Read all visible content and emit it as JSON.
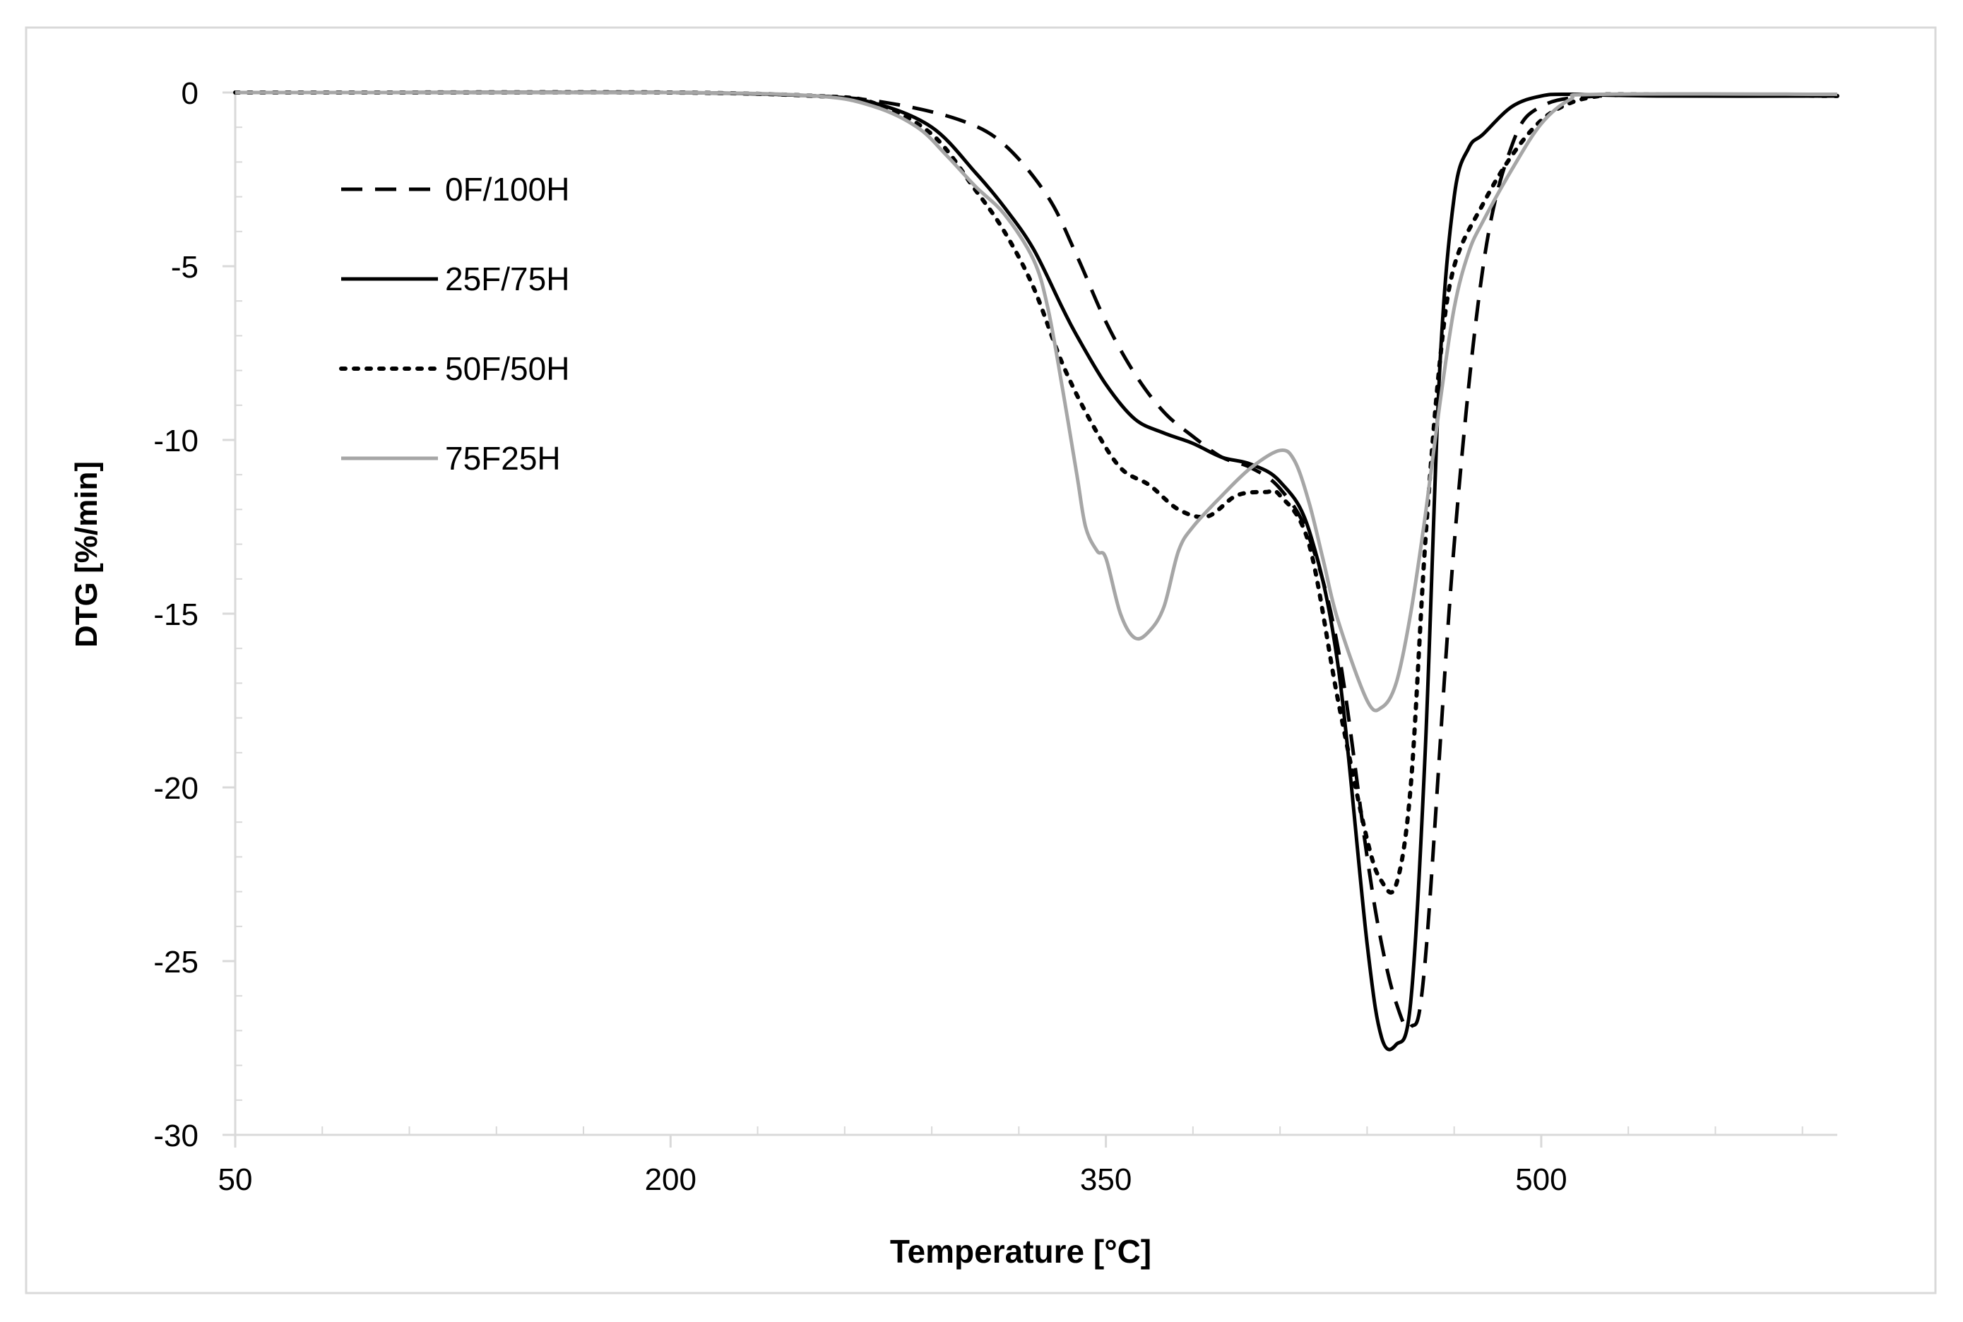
{
  "chart_data": {
    "type": "line",
    "title": "",
    "xlabel": "Temperature  [°C]",
    "ylabel": "DTG [%/min]",
    "xlim": [
      50,
      602
    ],
    "ylim": [
      -30,
      0
    ],
    "x_ticks": [
      50,
      200,
      350,
      500
    ],
    "x_tick_labels": [
      "50",
      "200",
      "350",
      "500"
    ],
    "y_ticks": [
      0,
      -5,
      -10,
      -15,
      -20,
      -25,
      -30
    ],
    "y_tick_labels": [
      "0",
      "-5",
      "-10",
      "-15",
      "-20",
      "-25",
      "-30"
    ],
    "grid": false,
    "legend_position": "top-left",
    "series": [
      {
        "name": "0F/100H",
        "color": "#000000",
        "dash": "dashed",
        "x": [
          50,
          100,
          200,
          250,
          275,
          300,
          315,
          330,
          340,
          350,
          360,
          370,
          380,
          390,
          400,
          410,
          420,
          430,
          440,
          445,
          450,
          455,
          460,
          470,
          480,
          490,
          500,
          520,
          560,
          602
        ],
        "y": [
          0,
          0,
          0,
          -0.1,
          -0.3,
          -0.8,
          -1.5,
          -3,
          -4.7,
          -6.6,
          -8.1,
          -9.2,
          -9.9,
          -10.5,
          -10.8,
          -11.4,
          -12.8,
          -16,
          -22,
          -24.5,
          -26.2,
          -26.9,
          -25,
          -13,
          -5,
          -1.5,
          -0.4,
          -0.1,
          -0.1,
          -0.1
        ]
      },
      {
        "name": "25F/75H",
        "color": "#000000",
        "dash": "solid",
        "x": [
          50,
          100,
          200,
          250,
          270,
          290,
          305,
          315,
          325,
          335,
          340,
          350,
          360,
          370,
          380,
          390,
          400,
          410,
          420,
          430,
          440,
          445,
          450,
          455,
          460,
          465,
          470,
          475,
          480,
          490,
          500,
          510,
          540,
          602
        ],
        "y": [
          0,
          0,
          0,
          -0.1,
          -0.3,
          -1,
          -2.3,
          -3.3,
          -4.5,
          -6.2,
          -7,
          -8.4,
          -9.4,
          -9.8,
          -10.1,
          -10.5,
          -10.7,
          -11.2,
          -12.6,
          -16.5,
          -24.5,
          -27.2,
          -27.4,
          -26.2,
          -19,
          -8,
          -3,
          -1.6,
          -1.2,
          -0.4,
          -0.1,
          -0.05,
          -0.1,
          -0.1
        ]
      },
      {
        "name": "50F/50H",
        "color": "#000000",
        "dash": "dotted",
        "x": [
          50,
          100,
          200,
          250,
          270,
          290,
          305,
          315,
          325,
          335,
          345,
          355,
          365,
          375,
          385,
          395,
          405,
          410,
          420,
          430,
          440,
          445,
          450,
          455,
          460,
          465,
          470,
          480,
          490,
          500,
          510,
          520,
          530,
          602
        ],
        "y": [
          0,
          0,
          0,
          -0.1,
          -0.3,
          -1.2,
          -2.8,
          -4,
          -5.6,
          -7.8,
          -9.5,
          -10.8,
          -11.3,
          -12,
          -12.2,
          -11.6,
          -11.5,
          -11.6,
          -13,
          -17.5,
          -21.5,
          -22.7,
          -22.8,
          -20,
          -13,
          -7.8,
          -5,
          -3.2,
          -1.8,
          -0.8,
          -0.3,
          -0.1,
          -0.05,
          -0.1
        ]
      },
      {
        "name": "75F25H",
        "color": "#a6a6a6",
        "dash": "solid",
        "x": [
          50,
          100,
          200,
          250,
          270,
          285,
          295,
          305,
          315,
          325,
          330,
          335,
          340,
          343,
          347,
          350,
          355,
          360,
          365,
          370,
          375,
          380,
          390,
          400,
          410,
          415,
          420,
          425,
          430,
          440,
          445,
          450,
          455,
          460,
          465,
          470,
          475,
          480,
          490,
          500,
          510,
          520,
          602
        ],
        "y": [
          0,
          0,
          0,
          -0.1,
          -0.4,
          -1,
          -1.8,
          -2.7,
          -3.5,
          -4.8,
          -6.2,
          -8.5,
          -11,
          -12.5,
          -13.2,
          -13.4,
          -15,
          -15.7,
          -15.5,
          -14.8,
          -13.2,
          -12.5,
          -11.6,
          -10.8,
          -10.3,
          -10.6,
          -11.8,
          -13.5,
          -15.2,
          -17.5,
          -17.7,
          -17,
          -15,
          -12.2,
          -9,
          -6.2,
          -4.6,
          -3.7,
          -2.2,
          -0.9,
          -0.2,
          -0.05,
          -0.05
        ]
      }
    ]
  }
}
